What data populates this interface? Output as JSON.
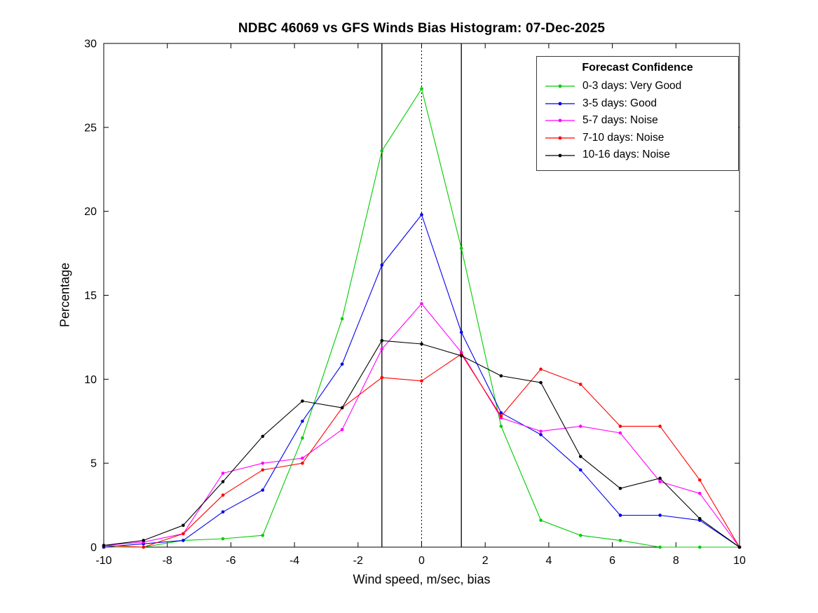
{
  "chart_data": {
    "type": "line",
    "title": "NDBC 46069 vs GFS Winds Bias Histogram: 07-Dec-2025",
    "xlabel": "Wind speed, m/sec, bias",
    "ylabel": "Percentage",
    "xlim": [
      -10,
      10
    ],
    "ylim": [
      0,
      30
    ],
    "x_ticks": [
      -10,
      -8,
      -6,
      -4,
      -2,
      0,
      2,
      4,
      6,
      8,
      10
    ],
    "y_ticks": [
      0,
      5,
      10,
      15,
      20,
      25,
      30
    ],
    "grid": false,
    "x": [
      -10,
      -8.75,
      -7.5,
      -6.25,
      -5,
      -3.75,
      -2.5,
      -1.25,
      0,
      1.25,
      2.5,
      3.75,
      5,
      6.25,
      7.5,
      8.75,
      10
    ],
    "series": [
      {
        "name": "0-3 days: Very Good",
        "color": "#00cc00",
        "values": [
          0.0,
          0.0,
          0.4,
          0.5,
          0.7,
          6.5,
          13.6,
          23.6,
          27.3,
          17.8,
          7.2,
          1.6,
          0.7,
          0.4,
          0.0,
          0.0,
          0.0
        ]
      },
      {
        "name": "3-5 days: Good",
        "color": "#0000ee",
        "values": [
          0.0,
          0.2,
          0.4,
          2.1,
          3.4,
          7.5,
          10.9,
          16.8,
          19.8,
          12.8,
          8.0,
          6.7,
          4.6,
          1.9,
          1.9,
          1.6,
          0.0
        ]
      },
      {
        "name": "5-7 days: Noise",
        "color": "#ff00ff",
        "values": [
          0.1,
          0.3,
          0.8,
          4.4,
          5.0,
          5.3,
          7.0,
          11.8,
          14.5,
          11.6,
          7.7,
          6.9,
          7.2,
          6.8,
          3.9,
          3.2,
          0.0
        ]
      },
      {
        "name": "7-10 days: Noise",
        "color": "#ff0000",
        "values": [
          0.1,
          0.0,
          0.8,
          3.1,
          4.6,
          5.0,
          8.3,
          10.1,
          9.9,
          11.5,
          7.8,
          10.6,
          9.7,
          7.2,
          7.2,
          4.0,
          0.0
        ]
      },
      {
        "name": "10-16 days: Noise",
        "color": "#000000",
        "values": [
          0.1,
          0.4,
          1.3,
          3.9,
          6.6,
          8.7,
          8.3,
          12.3,
          12.1,
          11.4,
          10.2,
          9.8,
          5.4,
          3.5,
          4.1,
          1.7,
          0.0
        ]
      }
    ],
    "reference_lines": {
      "solid": [
        -1.25,
        1.25
      ],
      "dotted": [
        0
      ]
    },
    "legend": {
      "title": "Forecast Confidence",
      "position": "top-right"
    },
    "axis_color": "#000000",
    "background": "#ffffff"
  }
}
